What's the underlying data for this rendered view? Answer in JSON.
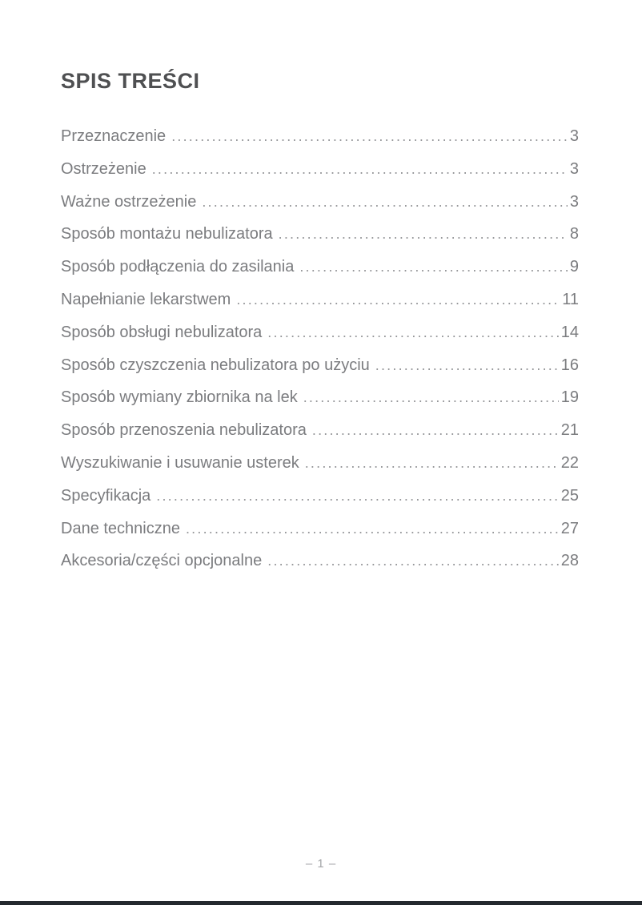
{
  "page": {
    "title": "SPIS TREŚCI",
    "footer_page_label": "– 1 –"
  },
  "toc": {
    "entries": [
      {
        "label": "Przeznaczenie",
        "page": "3"
      },
      {
        "label": "Ostrzeżenie",
        "page": "3"
      },
      {
        "label": "Ważne ostrzeżenie",
        "page": "3"
      },
      {
        "label": "Sposób montażu nebulizatora",
        "page": "8"
      },
      {
        "label": "Sposób podłączenia do zasilania",
        "page": "9"
      },
      {
        "label": "Napełnianie lekarstwem",
        "page": "11"
      },
      {
        "label": "Sposób obsługi nebulizatora",
        "page": "14"
      },
      {
        "label": "Sposób czyszczenia nebulizatora po użyciu",
        "page": "16"
      },
      {
        "label": "Sposób wymiany zbiornika na lek",
        "page": "19"
      },
      {
        "label": "Sposób przenoszenia nebulizatora",
        "page": "21"
      },
      {
        "label": "Wyszukiwanie i usuwanie usterek",
        "page": "22"
      },
      {
        "label": "Specyfikacja",
        "page": "25"
      },
      {
        "label": "Dane techniczne",
        "page": "27"
      },
      {
        "label": "Akcesoria/części opcjonalne",
        "page": "28"
      }
    ]
  },
  "colors": {
    "title_text": "#4f5052",
    "entry_text": "#7b7c7f",
    "dot_leader": "#96979a",
    "footer_text": "#a4a6a9",
    "bottom_bar": "#24292e",
    "background": "#ffffff"
  }
}
